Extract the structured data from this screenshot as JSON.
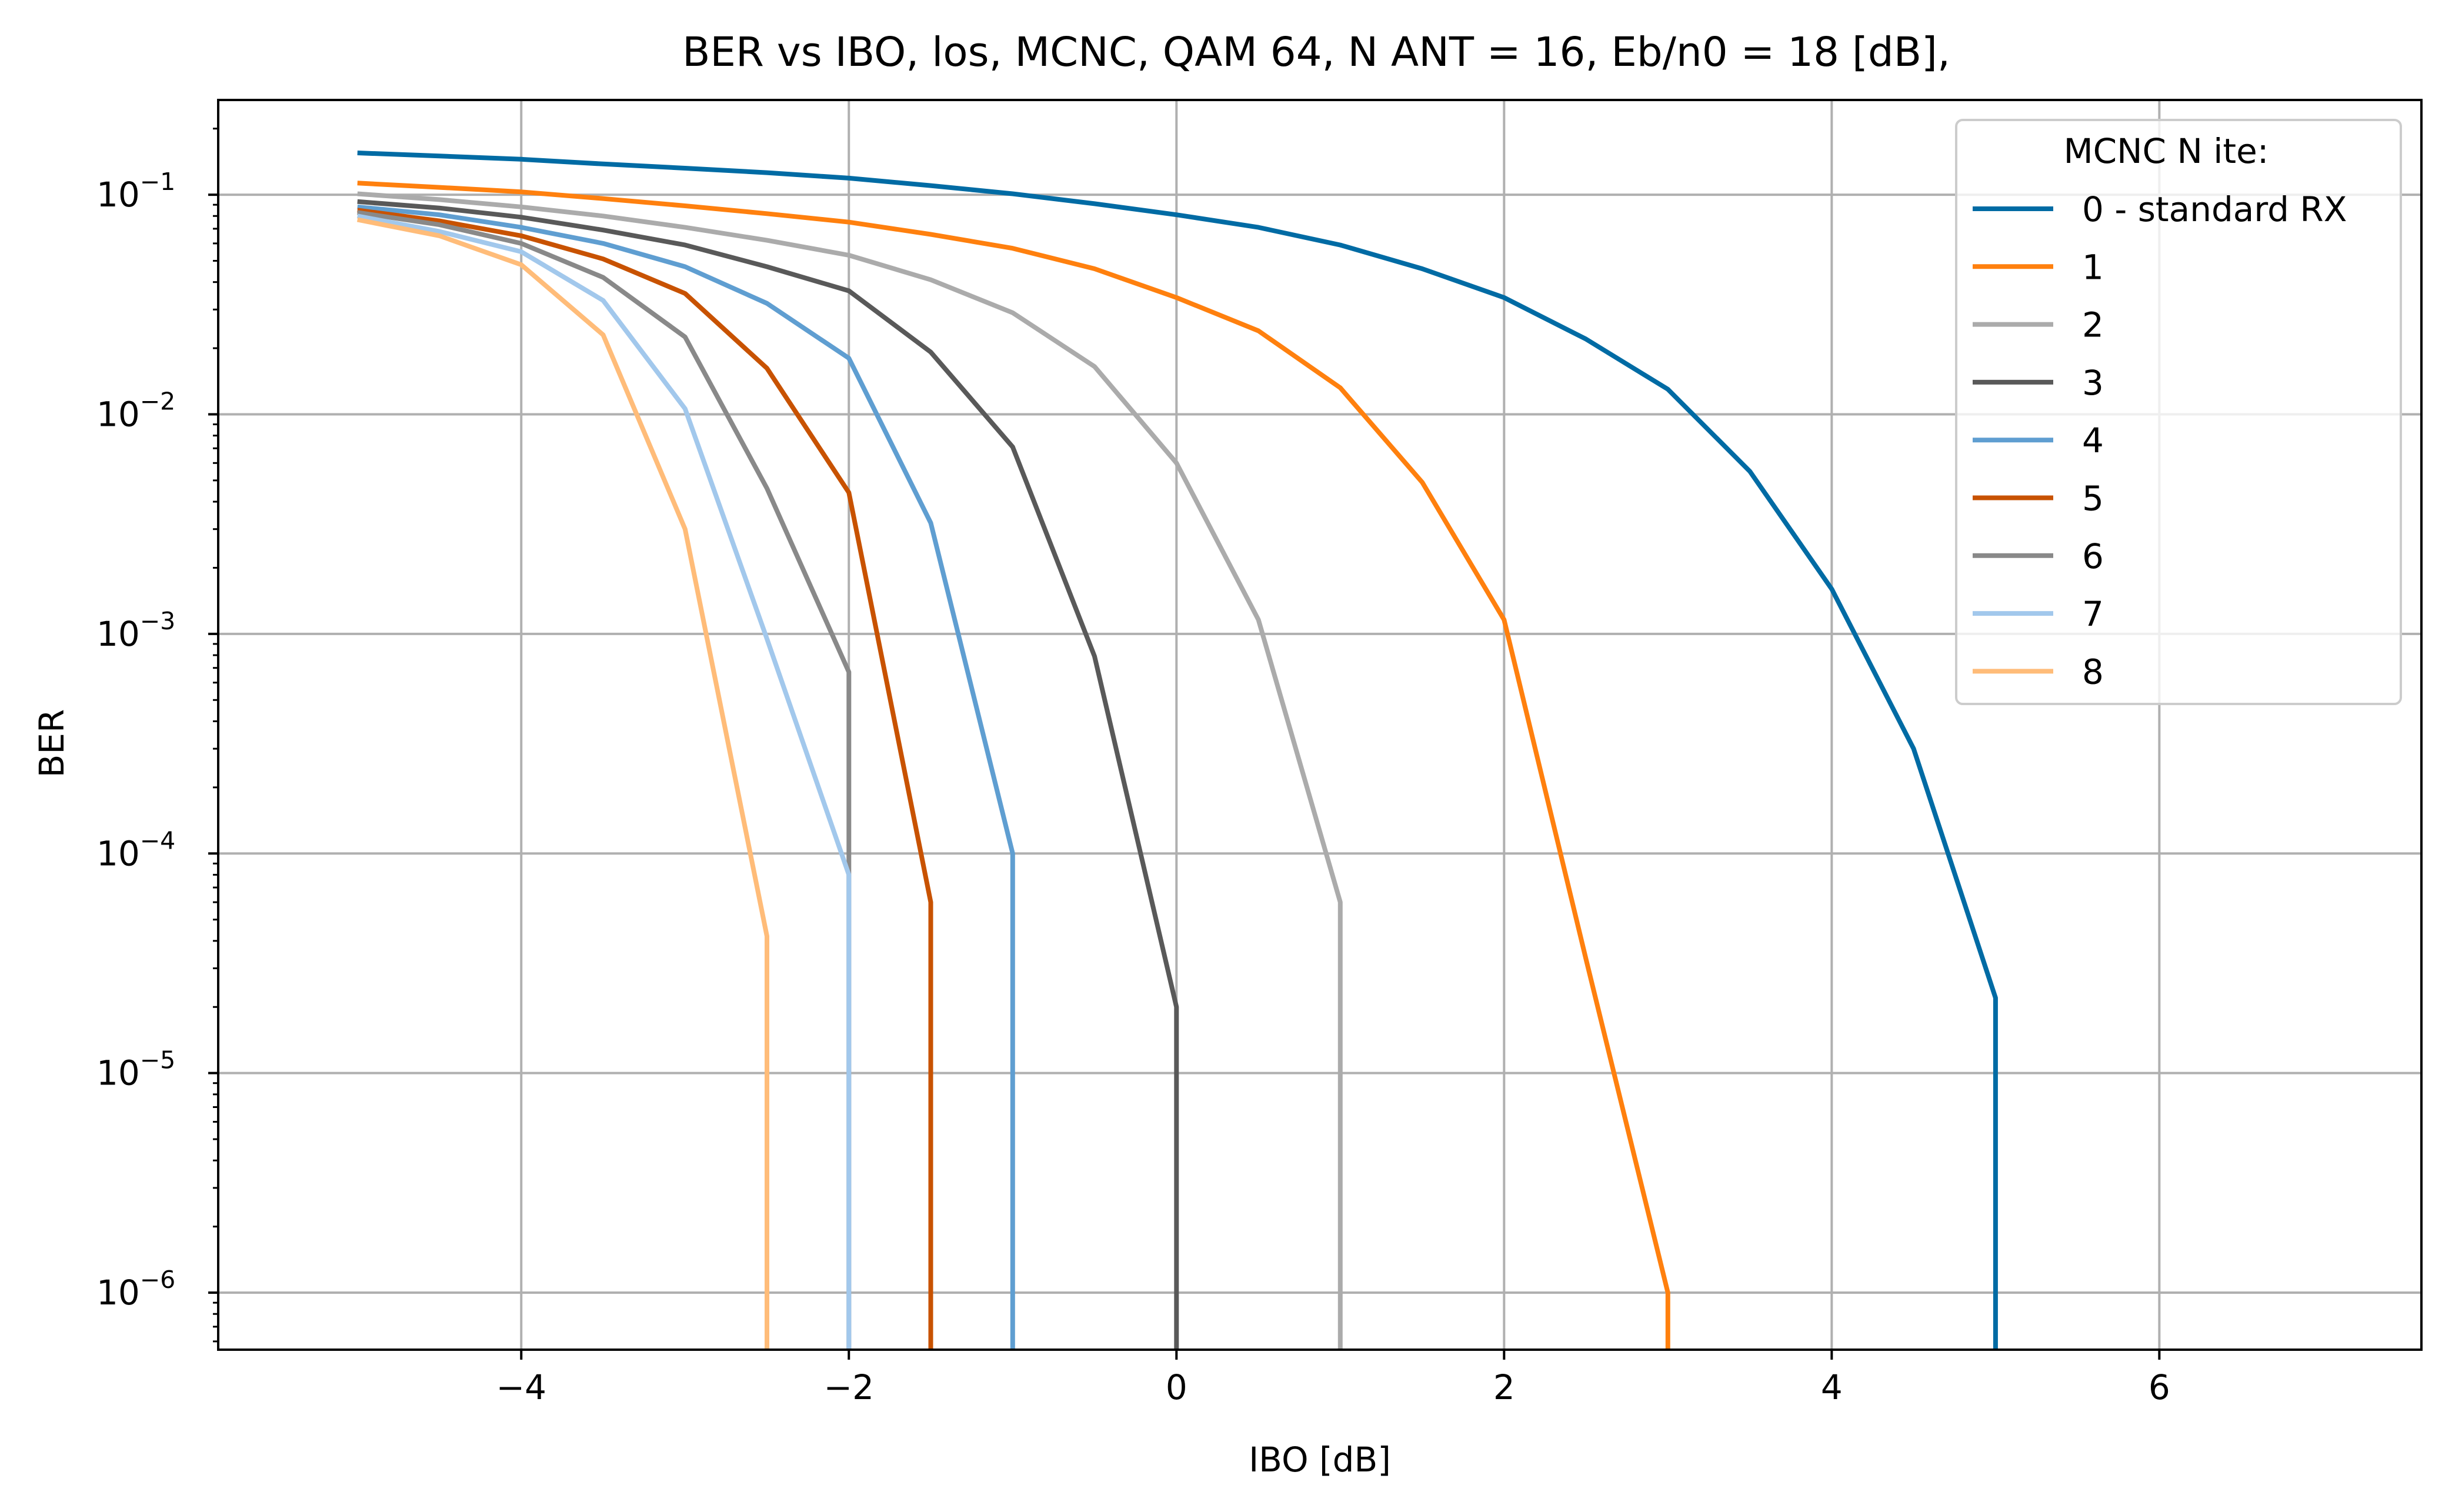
{
  "chart_data": {
    "type": "line",
    "title": "BER vs IBO, los, MCNC, QAM 64, N ANT = 16, Eb/n0 = 18 [dB],",
    "xlabel": "IBO [dB]",
    "ylabel": "BER",
    "xlim": [
      -5.85,
      7.6
    ],
    "ylim": [
      5.5e-07,
      0.27
    ],
    "yscale": "log",
    "grid": true,
    "x_ticks": [
      {
        "value": -4,
        "label": "−4"
      },
      {
        "value": -2,
        "label": "−2"
      },
      {
        "value": 0,
        "label": "0"
      },
      {
        "value": 2,
        "label": "2"
      },
      {
        "value": 4,
        "label": "4"
      },
      {
        "value": 6,
        "label": "6"
      }
    ],
    "y_ticks": [
      {
        "value": 0.1,
        "base": "10",
        "exp": "−1"
      },
      {
        "value": 0.01,
        "base": "10",
        "exp": "−2"
      },
      {
        "value": 0.001,
        "base": "10",
        "exp": "−3"
      },
      {
        "value": 0.0001,
        "base": "10",
        "exp": "−4"
      },
      {
        "value": 1e-05,
        "base": "10",
        "exp": "−5"
      },
      {
        "value": 1e-06,
        "base": "10",
        "exp": "−6"
      }
    ],
    "legend": {
      "title": "MCNC N ite:",
      "placement": "upper right"
    },
    "series": [
      {
        "name": "0 - standard RX",
        "color": "#006BA4",
        "x": [
          -5,
          -4.5,
          -4,
          -3.5,
          -3,
          -2.5,
          -2,
          -1.5,
          -1,
          -0.5,
          0,
          0.5,
          1,
          1.5,
          2,
          2.5,
          3,
          3.5,
          4,
          4.5,
          5,
          5
        ],
        "y": [
          0.155,
          0.15,
          0.145,
          0.138,
          0.132,
          0.126,
          0.119,
          0.11,
          0.101,
          0.091,
          0.081,
          0.071,
          0.059,
          0.046,
          0.034,
          0.022,
          0.013,
          0.0055,
          0.0016,
          0.0003,
          2.2e-05,
          5.5e-07
        ]
      },
      {
        "name": "1",
        "color": "#FF800E",
        "x": [
          -5,
          -4.5,
          -4,
          -3.5,
          -3,
          -2.5,
          -2,
          -1.5,
          -1,
          -0.5,
          0,
          0.5,
          1,
          1.5,
          2,
          2.5,
          3,
          3
        ],
        "y": [
          0.113,
          0.108,
          0.103,
          0.096,
          0.089,
          0.082,
          0.075,
          0.066,
          0.057,
          0.046,
          0.034,
          0.024,
          0.0132,
          0.0049,
          0.00116,
          3.3e-05,
          1e-06,
          5.5e-07
        ]
      },
      {
        "name": "2",
        "color": "#ABABAB",
        "x": [
          -5,
          -4.5,
          -4,
          -3.5,
          -3,
          -2.5,
          -2,
          -1.5,
          -1,
          -0.5,
          0,
          0.5,
          1,
          1
        ],
        "y": [
          0.101,
          0.095,
          0.088,
          0.08,
          0.071,
          0.062,
          0.053,
          0.041,
          0.029,
          0.0165,
          0.006,
          0.00116,
          6e-05,
          5.5e-07
        ]
      },
      {
        "name": "3",
        "color": "#595959",
        "x": [
          -5,
          -4.5,
          -4,
          -3.5,
          -3,
          -2.5,
          -2,
          -1.5,
          -1,
          -0.5,
          0,
          0
        ],
        "y": [
          0.093,
          0.087,
          0.079,
          0.069,
          0.059,
          0.047,
          0.0365,
          0.0192,
          0.0071,
          0.00079,
          2e-05,
          5.5e-07
        ]
      },
      {
        "name": "4",
        "color": "#5F9ED1",
        "x": [
          -5,
          -4.5,
          -4,
          -3.5,
          -3,
          -2.5,
          -2,
          -1.5,
          -1,
          -1
        ],
        "y": [
          0.088,
          0.081,
          0.071,
          0.06,
          0.047,
          0.032,
          0.018,
          0.0032,
          0.0001,
          5.5e-07
        ]
      },
      {
        "name": "5",
        "color": "#C85200",
        "x": [
          -5,
          -4.5,
          -4,
          -3.5,
          -3,
          -2.5,
          -2,
          -1.5,
          -1.5
        ],
        "y": [
          0.085,
          0.076,
          0.065,
          0.051,
          0.0355,
          0.0162,
          0.0044,
          6e-05,
          5.5e-07
        ]
      },
      {
        "name": "6",
        "color": "#898989",
        "x": [
          -5,
          -4.5,
          -4,
          -3.5,
          -3,
          -2.5,
          -2,
          -2,
          -2
        ],
        "y": [
          0.083,
          0.073,
          0.06,
          0.042,
          0.0225,
          0.0046,
          0.00067,
          8e-05,
          5.5e-07
        ]
      },
      {
        "name": "7",
        "color": "#A2C8EC",
        "x": [
          -5,
          -4.5,
          -4,
          -3.5,
          -3,
          -2.5,
          -2,
          -2
        ],
        "y": [
          0.08,
          0.068,
          0.055,
          0.033,
          0.0106,
          0.00095,
          8e-05,
          5.5e-07
        ]
      },
      {
        "name": "8",
        "color": "#FFBC79",
        "x": [
          -5,
          -4.5,
          -4,
          -3.5,
          -3,
          -2.5,
          -2.5
        ],
        "y": [
          0.077,
          0.065,
          0.048,
          0.023,
          0.003,
          4.2e-05,
          5.5e-07
        ]
      }
    ]
  }
}
